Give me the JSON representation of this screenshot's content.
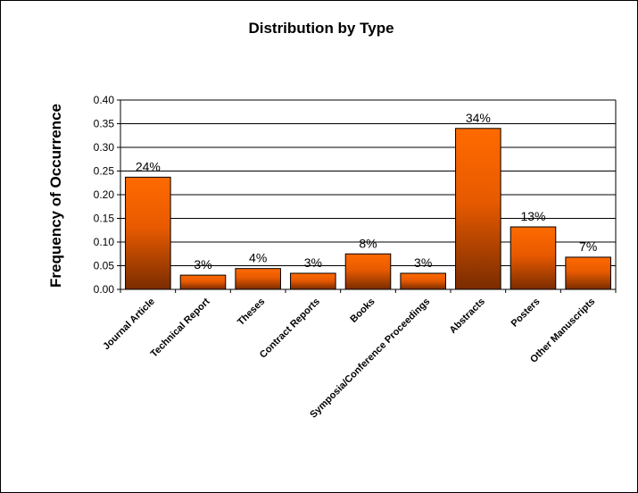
{
  "chart_data": {
    "type": "bar",
    "title": "Distribution by Type",
    "xlabel": "",
    "ylabel": "Frequency of Occurrence",
    "ylim": [
      0,
      0.4
    ],
    "yticks": [
      "0.00",
      "0.05",
      "0.10",
      "0.15",
      "0.20",
      "0.25",
      "0.30",
      "0.35",
      "0.40"
    ],
    "grid": true,
    "legend": "none",
    "categories": [
      "Journal Article",
      "Technical Report",
      "Theses",
      "Contract Reports",
      "Books",
      "Symposia/Conference Proceedings",
      "Abstracts",
      "Posters",
      "Other Manuscripts"
    ],
    "values": [
      0.237,
      0.03,
      0.044,
      0.034,
      0.075,
      0.034,
      0.34,
      0.132,
      0.068
    ],
    "data_labels": [
      "24%",
      "3%",
      "4%",
      "3%",
      "8%",
      "3%",
      "34%",
      "13%",
      "7%"
    ],
    "colors": {
      "bar_top": "#ff6a00",
      "bar_bottom": "#7a2c00",
      "axis": "#000000",
      "grid": "#000000"
    }
  }
}
